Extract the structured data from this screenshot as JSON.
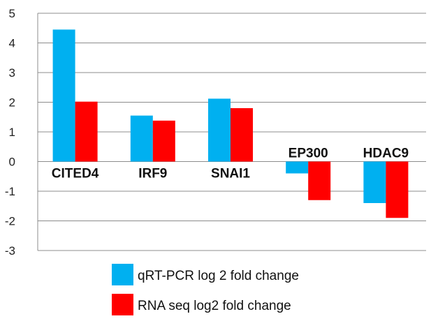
{
  "chart_data": {
    "type": "bar",
    "categories": [
      "CITED4",
      "IRF9",
      "SNAI1",
      "EP300",
      "HDAC9"
    ],
    "series": [
      {
        "name": "qRT-PCR log 2 fold change",
        "color": "#00B0F0",
        "values": [
          4.45,
          1.55,
          2.12,
          -0.4,
          -1.4
        ]
      },
      {
        "name": "RNA seq log2 fold change",
        "color": "#FF0000",
        "values": [
          2.02,
          1.38,
          1.8,
          -1.3,
          -1.9
        ]
      }
    ],
    "ylim": [
      -3,
      5
    ],
    "yticks": [
      5,
      4,
      3,
      2,
      1,
      0,
      -1,
      -2,
      -3
    ],
    "ytick_labels": [
      "5",
      "4",
      "3",
      "2",
      "1",
      "0",
      "-1",
      "-2",
      "-3"
    ],
    "grid": true,
    "legend_position": "bottom-center"
  }
}
